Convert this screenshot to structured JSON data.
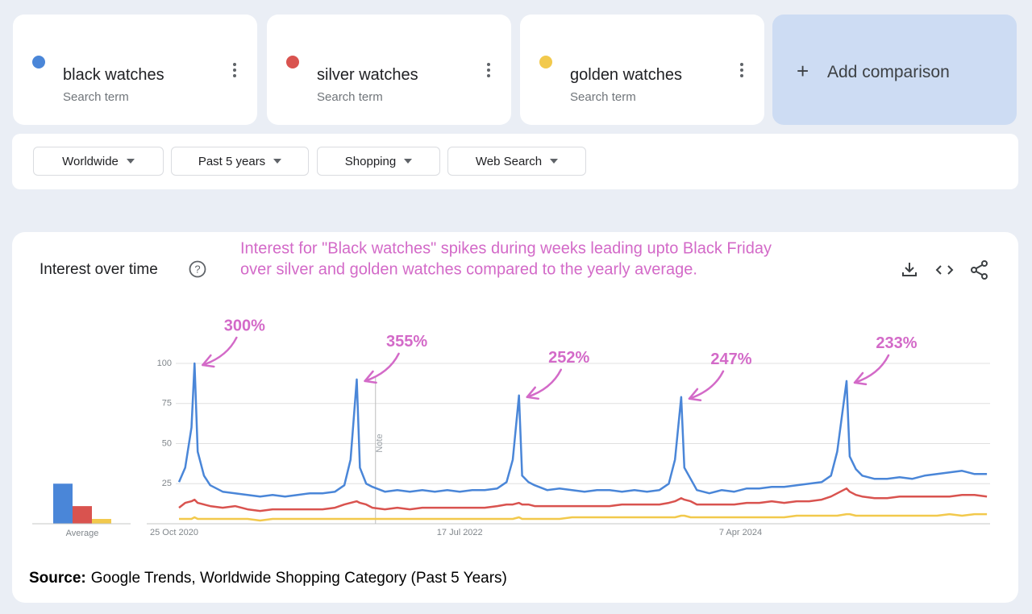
{
  "search_term_label": "Search term",
  "add_comparison": "Add comparison",
  "filters": [
    "Worldwide",
    "Past 5 years",
    "Shopping",
    "Web Search"
  ],
  "annotation": [
    "Interest for \"Black watches\" spikes during weeks leading upto Black Friday",
    "over silver and golden watches compared to the yearly average."
  ],
  "source": {
    "label": "Source:",
    "text": "Google Trends, Worldwide Shopping Category (Past 5 Years)"
  },
  "chart_data": {
    "type": "line",
    "title": "Interest over time",
    "x": [
      "25 Oct 2020",
      "8 Nov 2020",
      "22 Nov 2020",
      "29 Nov 2020",
      "6 Dec 2020",
      "20 Dec 2020",
      "3 Jan 2021",
      "31 Jan 2021",
      "28 Feb 2021",
      "28 Mar 2021",
      "25 Apr 2021",
      "23 May 2021",
      "20 Jun 2021",
      "18 Jul 2021",
      "15 Aug 2021",
      "12 Sep 2021",
      "10 Oct 2021",
      "31 Oct 2021",
      "14 Nov 2021",
      "28 Nov 2021",
      "5 Dec 2021",
      "19 Dec 2021",
      "2 Jan 2022",
      "30 Jan 2022",
      "27 Feb 2022",
      "27 Mar 2022",
      "24 Apr 2022",
      "22 May 2022",
      "19 Jun 2022",
      "17 Jul 2022",
      "14 Aug 2022",
      "11 Sep 2022",
      "9 Oct 2022",
      "30 Oct 2022",
      "13 Nov 2022",
      "27 Nov 2022",
      "4 Dec 2022",
      "18 Dec 2022",
      "1 Jan 2023",
      "29 Jan 2023",
      "26 Feb 2023",
      "26 Mar 2023",
      "23 Apr 2023",
      "21 May 2023",
      "18 Jun 2023",
      "16 Jul 2023",
      "13 Aug 2023",
      "10 Sep 2023",
      "8 Oct 2023",
      "29 Oct 2023",
      "12 Nov 2023",
      "26 Nov 2023",
      "3 Dec 2023",
      "17 Dec 2023",
      "31 Dec 2023",
      "28 Jan 2024",
      "25 Feb 2024",
      "24 Mar 2024",
      "21 Apr 2024",
      "19 May 2024",
      "16 Jun 2024",
      "14 Jul 2024",
      "11 Aug 2024",
      "8 Sep 2024",
      "6 Oct 2024",
      "27 Oct 2024",
      "10 Nov 2024",
      "1 Dec 2024",
      "8 Dec 2024",
      "22 Dec 2024",
      "5 Jan 2025",
      "2 Feb 2025",
      "2 Mar 2025",
      "30 Mar 2025",
      "27 Apr 2025",
      "25 May 2025",
      "22 Jun 2025",
      "20 Jul 2025",
      "17 Aug 2025",
      "14 Sep 2025",
      "12 Oct 2025"
    ],
    "series": [
      {
        "name": "black watches",
        "color": "#4a86d8",
        "values": [
          26,
          35,
          60,
          100,
          45,
          30,
          24,
          20,
          19,
          18,
          17,
          18,
          17,
          18,
          19,
          19,
          20,
          24,
          40,
          90,
          35,
          25,
          23,
          20,
          21,
          20,
          21,
          20,
          21,
          20,
          21,
          21,
          22,
          26,
          40,
          80,
          30,
          26,
          24,
          21,
          22,
          21,
          20,
          21,
          21,
          20,
          21,
          20,
          21,
          25,
          40,
          79,
          35,
          28,
          21,
          19,
          21,
          20,
          22,
          22,
          23,
          23,
          24,
          25,
          26,
          30,
          45,
          89,
          42,
          34,
          30,
          28,
          28,
          29,
          28,
          30,
          31,
          32,
          33,
          31,
          31
        ]
      },
      {
        "name": "silver watches",
        "color": "#d9534f",
        "values": [
          10,
          13,
          14,
          15,
          13,
          12,
          11,
          10,
          11,
          9,
          8,
          9,
          9,
          9,
          9,
          9,
          10,
          12,
          13,
          14,
          13,
          12,
          10,
          9,
          10,
          9,
          10,
          10,
          10,
          10,
          10,
          10,
          11,
          12,
          12,
          13,
          12,
          12,
          11,
          11,
          11,
          11,
          11,
          11,
          11,
          12,
          12,
          12,
          12,
          13,
          14,
          16,
          15,
          14,
          12,
          12,
          12,
          12,
          13,
          13,
          14,
          13,
          14,
          14,
          15,
          17,
          19,
          22,
          20,
          18,
          17,
          16,
          16,
          17,
          17,
          17,
          17,
          17,
          18,
          18,
          17
        ]
      },
      {
        "name": "golden watches",
        "color": "#f2c94c",
        "values": [
          3,
          3,
          3,
          4,
          3,
          3,
          3,
          3,
          3,
          3,
          2,
          3,
          3,
          3,
          3,
          3,
          3,
          3,
          3,
          3,
          3,
          3,
          3,
          3,
          3,
          3,
          3,
          3,
          3,
          3,
          3,
          3,
          3,
          3,
          3,
          4,
          3,
          3,
          3,
          3,
          3,
          4,
          4,
          4,
          4,
          4,
          4,
          4,
          4,
          4,
          4,
          5,
          5,
          4,
          4,
          4,
          4,
          4,
          4,
          4,
          4,
          4,
          5,
          5,
          5,
          5,
          5,
          6,
          6,
          5,
          5,
          5,
          5,
          5,
          5,
          5,
          5,
          6,
          5,
          6,
          6
        ]
      }
    ],
    "averages": [
      25,
      11,
      3
    ],
    "averages_label": "Average",
    "xlim": [
      "25 Oct 2020",
      "19 Oct 2025"
    ],
    "xticks": [
      "25 Oct 2020",
      "17 Jul 2022",
      "7 Apr 2024"
    ],
    "ylim": [
      0,
      100
    ],
    "yticks": [
      25,
      50,
      75,
      100
    ],
    "grid": true,
    "note": {
      "label": "Note",
      "x": "9 Jan 2022"
    },
    "peak_labels": [
      {
        "label": "300%",
        "x": "29 Nov 2020"
      },
      {
        "label": "355%",
        "x": "28 Nov 2021"
      },
      {
        "label": "252%",
        "x": "27 Nov 2022"
      },
      {
        "label": "247%",
        "x": "26 Nov 2023"
      },
      {
        "label": "233%",
        "x": "1 Dec 2024"
      }
    ],
    "annotation_color": "#d36ac8"
  }
}
